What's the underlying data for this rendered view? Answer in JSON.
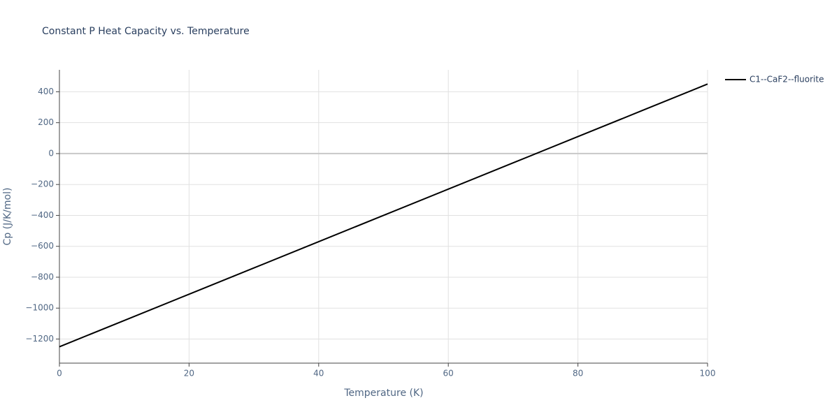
{
  "chart_data": {
    "type": "line",
    "title": "Constant P Heat Capacity vs. Temperature",
    "x_label": "Temperature (K)",
    "y_label": "Cp (J/K/mol)",
    "x": [
      0,
      10,
      20,
      30,
      40,
      50,
      60,
      70,
      80,
      90,
      100
    ],
    "series": [
      {
        "name": "C1--CaF2--fluorite",
        "color": "#000000",
        "values": [
          -1250,
          -1080,
          -910,
          -740,
          -570,
          -400,
          -230,
          -60,
          110,
          280,
          450
        ]
      }
    ],
    "xlim": [
      0,
      100
    ],
    "xticks": [
      0,
      20,
      40,
      60,
      80,
      100
    ],
    "ylim": [
      -1356,
      542
    ],
    "yticks": [
      {
        "value": -1200,
        "label": "−1200"
      },
      {
        "value": -1000,
        "label": "−1000"
      },
      {
        "value": -800,
        "label": "−800"
      },
      {
        "value": -600,
        "label": "−600"
      },
      {
        "value": -400,
        "label": "−400"
      },
      {
        "value": -200,
        "label": "−200"
      },
      0,
      200,
      400
    ],
    "grid": true,
    "legend": "top-right"
  }
}
